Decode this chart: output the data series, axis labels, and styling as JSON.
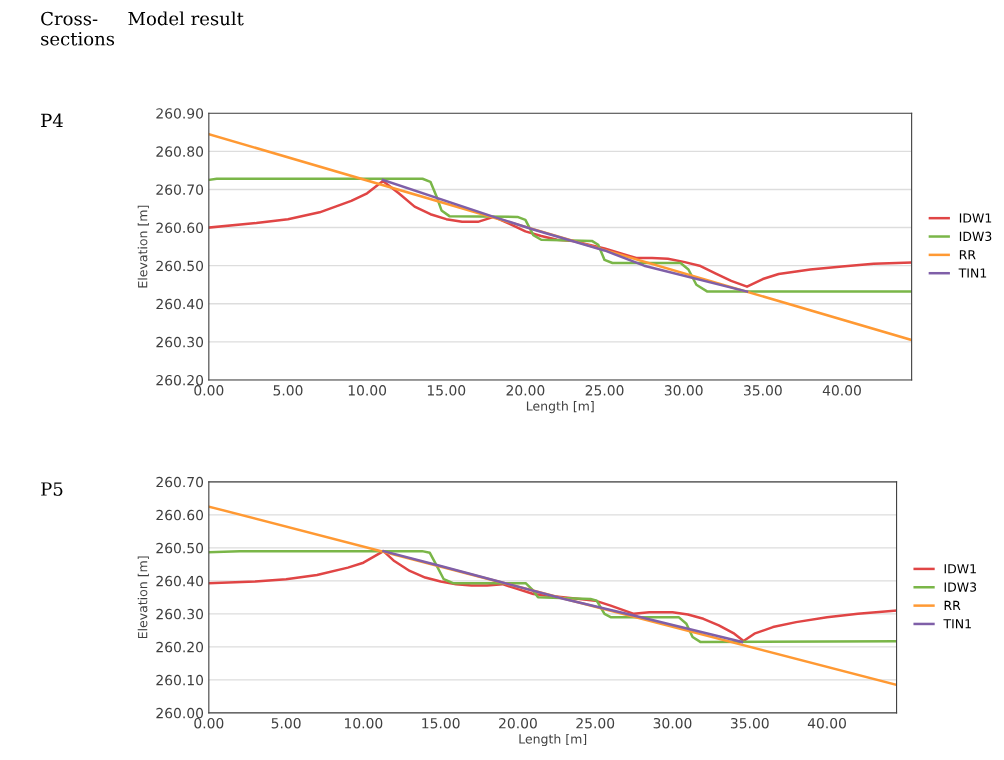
{
  "chart_data": [
    {
      "type": "line",
      "title": "P4",
      "xlabel": "Length [m]",
      "ylabel": "Elevation [m]",
      "annotations": [
        "Cross-\nsections",
        "Model result"
      ],
      "grid": "y",
      "legend": "right",
      "marker": "none",
      "line_style": "solid",
      "xlim": [
        0,
        44.4
      ],
      "ylim": [
        260.2,
        260.9
      ],
      "xticks": [
        {
          "value": 0,
          "label": "0.00"
        },
        {
          "value": 5,
          "label": "5.00"
        },
        {
          "value": 10,
          "label": "10.00"
        },
        {
          "value": 15,
          "label": "15.00"
        },
        {
          "value": 20,
          "label": "20.00"
        },
        {
          "value": 25,
          "label": "25.00"
        },
        {
          "value": 30,
          "label": "30.00"
        },
        {
          "value": 35,
          "label": "35.00"
        },
        {
          "value": 40,
          "label": "40.00"
        }
      ],
      "yticks": [
        {
          "value": 260.2,
          "label": "260.20"
        },
        {
          "value": 260.3,
          "label": "260.30"
        },
        {
          "value": 260.4,
          "label": "260.40"
        },
        {
          "value": 260.5,
          "label": "260.50"
        },
        {
          "value": 260.6,
          "label": "260.60"
        },
        {
          "value": 260.7,
          "label": "260.70"
        },
        {
          "value": 260.8,
          "label": "260.80"
        },
        {
          "value": 260.9,
          "label": "260.90"
        }
      ],
      "series": [
        {
          "name": "IDW1",
          "color": "#e04545",
          "x": [
            0,
            3,
            5,
            7,
            9,
            10,
            11,
            12,
            13,
            14,
            15,
            16,
            17,
            18,
            19,
            20,
            21,
            22,
            23,
            25,
            27,
            28,
            29,
            30,
            31,
            32,
            33,
            34,
            35,
            36,
            38,
            40,
            42,
            44.4
          ],
          "values": [
            260.6,
            260.612,
            260.622,
            260.64,
            260.67,
            260.69,
            260.722,
            260.69,
            260.655,
            260.635,
            260.622,
            260.615,
            260.615,
            260.628,
            260.61,
            260.59,
            260.578,
            260.568,
            260.565,
            260.545,
            260.52,
            260.52,
            260.518,
            260.51,
            260.5,
            260.48,
            260.46,
            260.445,
            260.465,
            260.478,
            260.49,
            260.498,
            260.505,
            260.508
          ]
        },
        {
          "name": "IDW3",
          "color": "#7ab648",
          "x": [
            0,
            0.5,
            13.5,
            14,
            14.4,
            14.7,
            15.2,
            19.5,
            20,
            20.5,
            21,
            24.2,
            24.6,
            25,
            25.5,
            29.8,
            30.3,
            30.8,
            31.5,
            44.4
          ],
          "values": [
            260.725,
            260.728,
            260.728,
            260.72,
            260.68,
            260.645,
            260.63,
            260.628,
            260.62,
            260.58,
            260.568,
            260.565,
            260.555,
            260.515,
            260.507,
            260.507,
            260.49,
            260.45,
            260.432,
            260.432
          ]
        },
        {
          "name": "RR",
          "color": "#ff9933",
          "x": [
            0,
            44.4
          ],
          "values": [
            260.845,
            260.305
          ]
        },
        {
          "name": "TIN1",
          "color": "#7f5fa8",
          "x": [
            11,
            18,
            20.5,
            25,
            27.5,
            34
          ],
          "values": [
            260.725,
            260.628,
            260.595,
            260.54,
            260.5,
            260.432
          ]
        }
      ]
    },
    {
      "type": "line",
      "title": "P5",
      "xlabel": "Length [m]",
      "ylabel": "Elevation [m]",
      "grid": "y",
      "legend": "right",
      "marker": "none",
      "line_style": "solid",
      "xlim": [
        0,
        44.5
      ],
      "ylim": [
        260.0,
        260.7
      ],
      "xticks": [
        {
          "value": 0,
          "label": "0.00"
        },
        {
          "value": 5,
          "label": "5.00"
        },
        {
          "value": 10,
          "label": "10.00"
        },
        {
          "value": 15,
          "label": "15.00"
        },
        {
          "value": 20,
          "label": "20.00"
        },
        {
          "value": 25,
          "label": "25.00"
        },
        {
          "value": 30,
          "label": "30.00"
        },
        {
          "value": 35,
          "label": "35.00"
        },
        {
          "value": 40,
          "label": "40.00"
        }
      ],
      "yticks": [
        {
          "value": 260.0,
          "label": "260.00"
        },
        {
          "value": 260.1,
          "label": "260.10"
        },
        {
          "value": 260.2,
          "label": "260.20"
        },
        {
          "value": 260.3,
          "label": "260.30"
        },
        {
          "value": 260.4,
          "label": "260.40"
        },
        {
          "value": 260.5,
          "label": "260.50"
        },
        {
          "value": 260.6,
          "label": "260.60"
        },
        {
          "value": 260.7,
          "label": "260.70"
        }
      ],
      "series": [
        {
          "name": "IDW1",
          "color": "#e04545",
          "x": [
            0,
            3,
            5,
            7,
            9,
            10,
            11.3,
            12,
            13,
            14,
            15,
            16,
            17,
            18,
            19,
            20,
            21,
            22,
            24,
            25,
            26,
            27.5,
            28.5,
            30,
            31,
            32,
            33,
            34,
            34.6,
            35.3,
            36.5,
            38,
            40,
            42,
            44.5
          ],
          "values": [
            260.393,
            260.398,
            260.405,
            260.418,
            260.44,
            260.455,
            260.49,
            260.46,
            260.43,
            260.41,
            260.398,
            260.39,
            260.386,
            260.386,
            260.39,
            260.375,
            260.36,
            260.355,
            260.345,
            260.34,
            260.325,
            260.3,
            260.305,
            260.305,
            260.298,
            260.285,
            260.265,
            260.24,
            260.218,
            260.24,
            260.26,
            260.275,
            260.29,
            260.3,
            260.31
          ]
        },
        {
          "name": "IDW3",
          "color": "#7ab648",
          "x": [
            0,
            2,
            13.8,
            14.3,
            14.7,
            15.2,
            15.8,
            20.5,
            20.9,
            21.3,
            24.7,
            25.1,
            25.6,
            26,
            30.4,
            30.9,
            31.3,
            31.8,
            44.5
          ],
          "values": [
            260.487,
            260.49,
            260.49,
            260.485,
            260.45,
            260.405,
            260.393,
            260.393,
            260.375,
            260.35,
            260.345,
            260.34,
            260.3,
            260.29,
            260.29,
            260.27,
            260.23,
            260.215,
            260.217
          ]
        },
        {
          "name": "RR",
          "color": "#ff9933",
          "x": [
            0,
            44.5
          ],
          "values": [
            260.625,
            260.085
          ]
        },
        {
          "name": "TIN1",
          "color": "#7f5fa8",
          "x": [
            11.3,
            15,
            19,
            23,
            27.5,
            31,
            34.5
          ],
          "values": [
            260.49,
            260.445,
            260.395,
            260.345,
            260.295,
            260.255,
            260.215
          ]
        }
      ]
    }
  ]
}
